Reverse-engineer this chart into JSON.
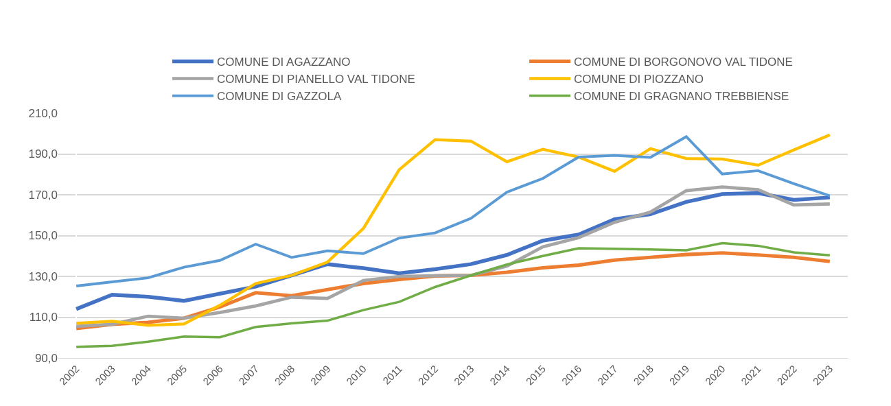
{
  "chart_data": {
    "type": "line",
    "categories": [
      "2002",
      "2003",
      "2004",
      "2005",
      "2006",
      "2007",
      "2008",
      "2009",
      "2010",
      "2011",
      "2012",
      "2013",
      "2014",
      "2015",
      "2016",
      "2017",
      "2018",
      "2019",
      "2020",
      "2021",
      "2022",
      "2023"
    ],
    "ylim": [
      90,
      210
    ],
    "yticks": [
      {
        "value": 90,
        "label": "90,0"
      },
      {
        "value": 110,
        "label": "110,0"
      },
      {
        "value": 130,
        "label": "130,0"
      },
      {
        "value": 150,
        "label": "150,0"
      },
      {
        "value": 170,
        "label": "170,0"
      },
      {
        "value": 190,
        "label": "190,0"
      },
      {
        "value": 210,
        "label": "210,0"
      }
    ],
    "grid": "y",
    "legend": "top",
    "marker": "none",
    "line_style": "solid",
    "series": [
      {
        "name": "COMUNE DI AGAZZANO",
        "color": "#4472c4",
        "values": [
          114,
          121,
          120,
          118,
          121.5,
          125,
          130.5,
          136,
          134,
          131.5,
          133.5,
          136,
          140.5,
          147.5,
          150.5,
          158,
          160.5,
          166.5,
          170.3,
          170.8,
          167.5,
          168.7
        ]
      },
      {
        "name": "COMUNE DI BORGONOVO VAL TIDONE",
        "color": "#ed7d31",
        "values": [
          104.5,
          106.5,
          107.5,
          109.5,
          115,
          122,
          120.5,
          123.5,
          126.5,
          128.5,
          130.2,
          130.5,
          132,
          134.2,
          135.5,
          138,
          139.3,
          140.7,
          141.5,
          140.5,
          139.3,
          137.3
        ]
      },
      {
        "name": "COMUNE DI PIANELLO VAL TIDONE",
        "color": "#a5a5a5",
        "values": [
          105.5,
          106.5,
          110.5,
          109.5,
          112.3,
          115.5,
          119.8,
          119.2,
          128,
          130,
          130.3,
          130.5,
          135,
          144.5,
          149,
          156.5,
          161.5,
          172,
          173.8,
          172.5,
          165,
          165.5
        ]
      },
      {
        "name": "COMUNE DI PIOZZANO",
        "color": "#ffc000",
        "values": [
          107,
          108,
          106,
          106.7,
          115.8,
          126.5,
          130.5,
          137,
          153.5,
          182.3,
          197,
          196.3,
          186.2,
          192.3,
          188.5,
          181.5,
          192.6,
          187.8,
          187.5,
          184.5,
          192,
          199.3
        ]
      },
      {
        "name": "COMUNE DI GAZZOLA",
        "color": "#5b9bd5",
        "values": [
          125.3,
          127.3,
          129.3,
          134.5,
          137.8,
          145.8,
          139.3,
          142.5,
          141.2,
          148.8,
          151.3,
          158.5,
          171.3,
          178,
          188.5,
          189.3,
          188.3,
          198.5,
          180.2,
          181.8,
          175.4,
          169.5
        ]
      },
      {
        "name": "COMUNE DI GRAGNANO TREBBIENSE",
        "color": "#70ad47",
        "values": [
          95.5,
          96,
          98,
          100.5,
          100.2,
          105.2,
          107,
          108.3,
          113.5,
          117.5,
          124.8,
          130.5,
          135.8,
          140,
          143.8,
          143.5,
          143.2,
          142.8,
          146.3,
          145,
          141.8,
          140.3
        ]
      }
    ]
  }
}
